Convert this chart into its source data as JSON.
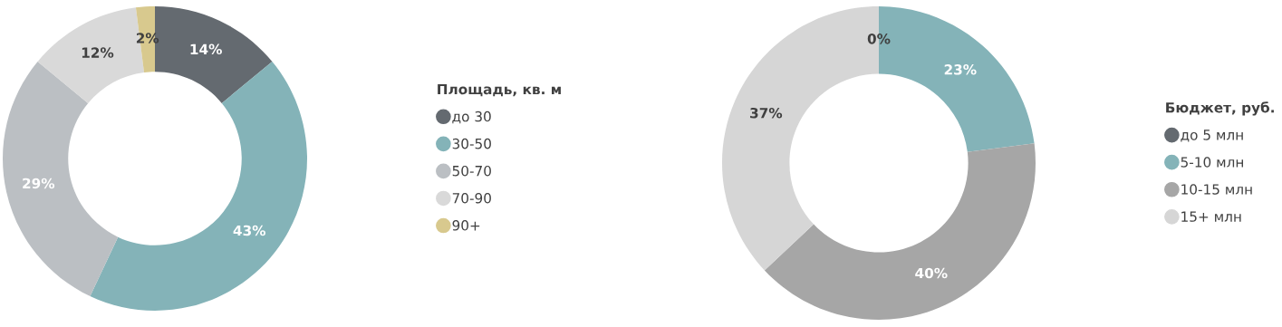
{
  "chart_data": [
    {
      "type": "donut",
      "legend_title": "Площадь, кв. м",
      "legend": "right",
      "categories": [
        "до 30",
        "30-50",
        "50-70",
        "70-90",
        "90+"
      ],
      "values": [
        14,
        43,
        29,
        12,
        2
      ],
      "value_labels": [
        "14%",
        "43%",
        "29%",
        "12%",
        "2%"
      ],
      "colors": [
        "#646a70",
        "#84b3b8",
        "#bbbfc3",
        "#d9d9d9",
        "#d8c98e"
      ]
    },
    {
      "type": "donut",
      "legend_title": "Бюджет, руб.",
      "legend": "right",
      "categories": [
        "до 5 млн",
        "5-10 млн",
        "10-15 млн",
        "15+ млн"
      ],
      "values": [
        0,
        23,
        40,
        37
      ],
      "value_labels": [
        "0%",
        "23%",
        "40%",
        "37%"
      ],
      "colors": [
        "#646a70",
        "#84b3b8",
        "#a6a6a6",
        "#d6d6d6"
      ]
    }
  ]
}
